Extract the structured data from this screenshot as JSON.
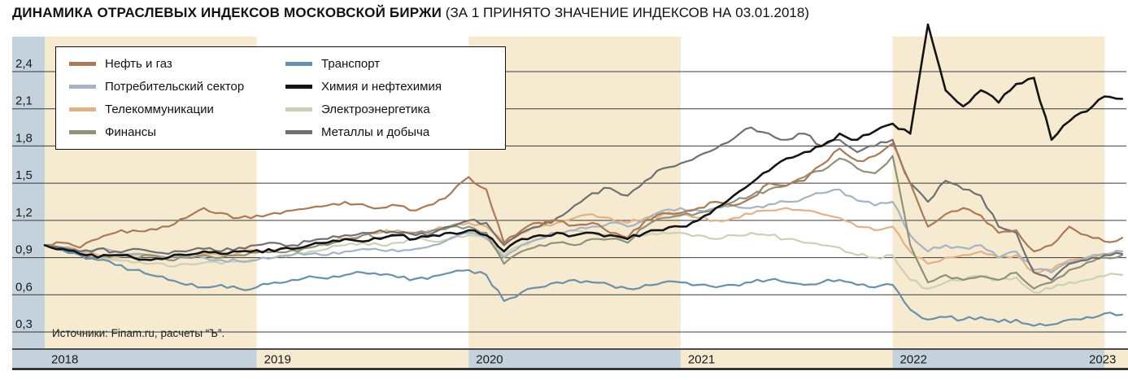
{
  "title": {
    "main": "ДИНАМИКА ОТРАСЛЕВЫХ ИНДЕКСОВ МОСКОВСКОЙ БИРЖИ",
    "suffix": " (ЗА 1 ПРИНЯТО ЗНАЧЕНИЕ ИНДЕКСОВ НА 03.01.2018)"
  },
  "source": "Источники: Finam.ru, расчеты “Ъ”.",
  "colors": {
    "band_cream": "#f6ead1",
    "band_blue": "#c3d2dc",
    "gridline": "#3a3a3a",
    "axis_text": "#1a1a1a"
  },
  "chart_data": {
    "type": "line",
    "title": "Динамика отраслевых индексов Московской биржи (за 1 принято значение индексов на 03.01.2018)",
    "x_range": [
      "2018-01",
      "2023-02"
    ],
    "x_year_labels": [
      "2018",
      "2019",
      "2020",
      "2021",
      "2022",
      "2023"
    ],
    "cream_years": [
      "2018",
      "2020",
      "2022"
    ],
    "ylim": [
      0.3,
      2.4
    ],
    "grid": true,
    "legend_position": "top-left",
    "y_ticks": [
      {
        "value": 2.4,
        "label": "2,4"
      },
      {
        "value": 2.1,
        "label": "2,1"
      },
      {
        "value": 1.8,
        "label": "1,8"
      },
      {
        "value": 1.5,
        "label": "1,5"
      },
      {
        "value": 1.2,
        "label": "1,2"
      },
      {
        "value": 0.9,
        "label": "0,9"
      },
      {
        "value": 0.6,
        "label": "0,6"
      },
      {
        "value": 0.3,
        "label": "0,3"
      }
    ],
    "points_per_series_interval": "monthly",
    "draw_order": [
      6,
      2,
      1,
      3,
      4,
      7,
      0,
      5
    ],
    "series": [
      {
        "name": "Нефть и газ",
        "color": "#aa7a56",
        "values": [
          1.0,
          1.02,
          0.98,
          1.05,
          1.1,
          1.12,
          1.13,
          1.15,
          1.22,
          1.3,
          1.26,
          1.22,
          1.24,
          1.26,
          1.28,
          1.3,
          1.32,
          1.35,
          1.33,
          1.3,
          1.32,
          1.28,
          1.33,
          1.42,
          1.55,
          1.45,
          1.02,
          1.12,
          1.18,
          1.2,
          1.16,
          1.18,
          1.1,
          1.06,
          1.2,
          1.26,
          1.26,
          1.3,
          1.35,
          1.32,
          1.38,
          1.5,
          1.48,
          1.52,
          1.65,
          1.78,
          1.68,
          1.72,
          1.82,
          1.5,
          1.15,
          1.25,
          1.3,
          1.24,
          1.1,
          1.12,
          0.95,
          1.0,
          1.15,
          1.08,
          1.03,
          1.06
        ]
      },
      {
        "name": "Потребительский сектор",
        "color": "#a6b3c1",
        "values": [
          1.0,
          0.98,
          0.95,
          0.97,
          0.95,
          0.93,
          0.92,
          0.9,
          0.92,
          0.9,
          0.88,
          0.87,
          0.88,
          0.9,
          0.92,
          0.93,
          0.92,
          0.95,
          0.97,
          0.96,
          0.95,
          0.97,
          1.0,
          1.06,
          1.1,
          1.06,
          0.9,
          1.0,
          1.05,
          1.1,
          1.12,
          1.15,
          1.18,
          1.15,
          1.2,
          1.28,
          1.3,
          1.28,
          1.3,
          1.32,
          1.3,
          1.33,
          1.35,
          1.38,
          1.42,
          1.45,
          1.36,
          1.32,
          1.35,
          1.08,
          0.95,
          1.0,
          0.98,
          1.0,
          0.9,
          0.95,
          0.8,
          0.78,
          0.86,
          0.9,
          0.93,
          0.95
        ]
      },
      {
        "name": "Телекоммуникации",
        "color": "#dfb287",
        "values": [
          1.0,
          0.98,
          0.95,
          0.92,
          0.9,
          0.92,
          0.91,
          0.9,
          0.92,
          0.93,
          0.92,
          0.94,
          0.95,
          0.96,
          0.98,
          1.0,
          1.02,
          1.05,
          1.08,
          1.1,
          1.12,
          1.1,
          1.12,
          1.16,
          1.18,
          1.15,
          1.02,
          1.1,
          1.15,
          1.18,
          1.22,
          1.25,
          1.22,
          1.18,
          1.22,
          1.25,
          1.25,
          1.22,
          1.2,
          1.22,
          1.25,
          1.28,
          1.3,
          1.28,
          1.25,
          1.22,
          1.15,
          1.12,
          1.15,
          0.95,
          0.85,
          0.9,
          0.92,
          0.95,
          0.9,
          0.92,
          0.78,
          0.8,
          0.88,
          0.9,
          0.92,
          0.93
        ]
      },
      {
        "name": "Финансы",
        "color": "#8e927b",
        "values": [
          1.0,
          0.97,
          0.93,
          0.9,
          0.92,
          0.9,
          0.92,
          0.88,
          0.9,
          0.92,
          0.9,
          0.92,
          0.94,
          0.95,
          0.96,
          0.98,
          1.0,
          1.05,
          1.08,
          1.06,
          1.08,
          1.1,
          1.12,
          1.15,
          1.15,
          1.1,
          0.85,
          0.95,
          1.0,
          1.02,
          1.0,
          1.05,
          1.05,
          1.02,
          1.15,
          1.22,
          1.24,
          1.26,
          1.3,
          1.35,
          1.4,
          1.45,
          1.48,
          1.55,
          1.6,
          1.7,
          1.62,
          1.58,
          1.72,
          1.0,
          0.7,
          0.76,
          0.72,
          0.75,
          0.72,
          0.78,
          0.65,
          0.7,
          0.8,
          0.86,
          0.9,
          0.92
        ]
      },
      {
        "name": "Транспорт",
        "color": "#6b90a9",
        "values": [
          1.0,
          0.96,
          0.92,
          0.88,
          0.84,
          0.8,
          0.76,
          0.72,
          0.68,
          0.66,
          0.68,
          0.65,
          0.66,
          0.7,
          0.72,
          0.75,
          0.73,
          0.76,
          0.78,
          0.76,
          0.74,
          0.73,
          0.75,
          0.78,
          0.8,
          0.76,
          0.55,
          0.62,
          0.66,
          0.7,
          0.72,
          0.7,
          0.68,
          0.65,
          0.68,
          0.7,
          0.7,
          0.68,
          0.66,
          0.68,
          0.7,
          0.72,
          0.7,
          0.68,
          0.7,
          0.72,
          0.68,
          0.66,
          0.68,
          0.48,
          0.4,
          0.42,
          0.4,
          0.42,
          0.38,
          0.4,
          0.35,
          0.36,
          0.4,
          0.42,
          0.45,
          0.44
        ]
      },
      {
        "name": "Химия и нефтехимия",
        "color": "#141414",
        "values": [
          1.0,
          0.97,
          0.93,
          0.9,
          0.92,
          0.9,
          0.88,
          0.9,
          0.92,
          0.95,
          0.93,
          0.95,
          0.96,
          0.95,
          0.97,
          1.0,
          1.02,
          1.05,
          1.03,
          1.05,
          1.08,
          1.05,
          1.08,
          1.1,
          1.12,
          1.08,
          0.95,
          1.05,
          1.08,
          1.1,
          1.08,
          1.1,
          1.08,
          1.05,
          1.1,
          1.12,
          1.15,
          1.2,
          1.3,
          1.4,
          1.5,
          1.6,
          1.7,
          1.75,
          1.8,
          1.9,
          1.85,
          1.92,
          1.98,
          1.9,
          2.78,
          2.25,
          2.12,
          2.25,
          2.15,
          2.3,
          2.35,
          1.85,
          2.0,
          2.08,
          2.2,
          2.18
        ]
      },
      {
        "name": "Электроэнергетика",
        "color": "#ccd1b6",
        "values": [
          1.0,
          0.97,
          0.93,
          0.9,
          0.88,
          0.86,
          0.85,
          0.83,
          0.85,
          0.86,
          0.85,
          0.87,
          0.88,
          0.9,
          0.92,
          0.95,
          0.97,
          1.0,
          1.02,
          1.0,
          1.02,
          1.05,
          1.03,
          1.05,
          1.08,
          1.05,
          0.92,
          1.0,
          1.05,
          1.1,
          1.12,
          1.1,
          1.08,
          1.05,
          1.08,
          1.1,
          1.1,
          1.08,
          1.05,
          1.08,
          1.1,
          1.08,
          1.05,
          1.02,
          1.0,
          0.98,
          0.92,
          0.9,
          0.92,
          0.72,
          0.65,
          0.7,
          0.72,
          0.75,
          0.72,
          0.74,
          0.62,
          0.65,
          0.7,
          0.72,
          0.75,
          0.76
        ]
      },
      {
        "name": "Металлы и добыча",
        "color": "#707070",
        "values": [
          1.0,
          0.98,
          0.95,
          0.97,
          0.95,
          0.97,
          0.95,
          0.93,
          0.95,
          0.97,
          0.95,
          0.98,
          1.0,
          1.02,
          1.0,
          1.03,
          1.05,
          1.08,
          1.1,
          1.12,
          1.1,
          1.08,
          1.1,
          1.15,
          1.2,
          1.18,
          1.0,
          1.1,
          1.15,
          1.22,
          1.32,
          1.42,
          1.46,
          1.4,
          1.52,
          1.62,
          1.66,
          1.72,
          1.78,
          1.86,
          1.95,
          1.9,
          1.85,
          1.9,
          1.8,
          1.85,
          1.75,
          1.8,
          1.85,
          1.5,
          1.35,
          1.52,
          1.45,
          1.4,
          1.15,
          1.1,
          0.78,
          0.72,
          0.85,
          0.88,
          0.92,
          0.93
        ]
      }
    ],
    "axis_strip": [
      {
        "year": "2018",
        "bg": "#c3d2dc"
      },
      {
        "year": "2019",
        "bg": "#f6ead1"
      },
      {
        "year": "2020",
        "bg": "#c3d2dc"
      },
      {
        "year": "2021",
        "bg": "#f6ead1"
      },
      {
        "year": "2022",
        "bg": "#c3d2dc"
      },
      {
        "year": "2023",
        "bg": "#f6ead1"
      }
    ]
  }
}
